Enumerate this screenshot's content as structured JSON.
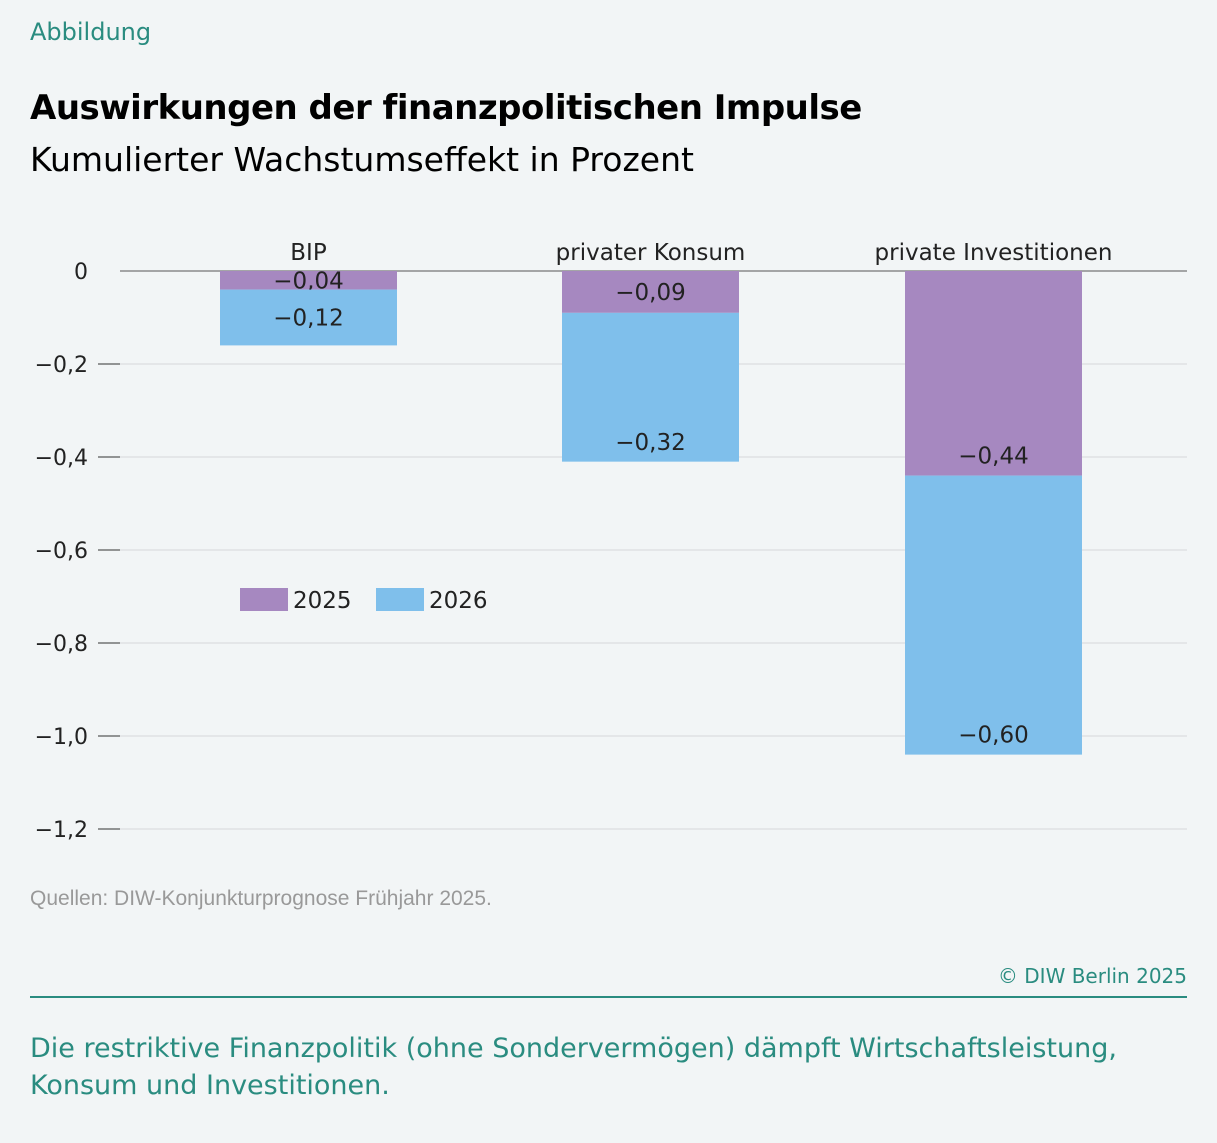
{
  "kicker": "Abbildung",
  "title": "Auswirkungen der finanzpolitischen Impulse",
  "subtitle": "Kumulierter Wachstumseffekt in Prozent",
  "source": "Quellen: DIW-Konjunkturprognose Frühjahr 2025.",
  "copyright": "© DIW Berlin 2025",
  "caption": "Die restriktive Finanzpolitik (ohne Sondervermögen) dämpft Wirtschaftsleistung, Konsum und Investitionen.",
  "chart_data": {
    "type": "bar",
    "stacked": true,
    "categories": [
      "BIP",
      "privater Konsum",
      "private Investitionen"
    ],
    "series": [
      {
        "name": "2025",
        "values": [
          -0.04,
          -0.09,
          -0.44
        ],
        "labels": [
          "−0,04",
          "−0,09",
          "−0,44"
        ],
        "color": "#a688c0"
      },
      {
        "name": "2026",
        "values": [
          -0.12,
          -0.32,
          -0.6
        ],
        "labels": [
          "−0,12",
          "−0,32",
          "−0,60"
        ],
        "color": "#7fbfeb"
      }
    ],
    "ylim": [
      -1.2,
      0
    ],
    "yticks": [
      0,
      -0.2,
      -0.4,
      -0.6,
      -0.8,
      -1.0,
      -1.2
    ],
    "ytick_labels": [
      "0",
      "−0,2",
      "−0,4",
      "−0,6",
      "−0,8",
      "−1,0",
      "−1,2"
    ],
    "grid": true,
    "legend_position": "center-left",
    "xlabel": "",
    "ylabel": ""
  }
}
